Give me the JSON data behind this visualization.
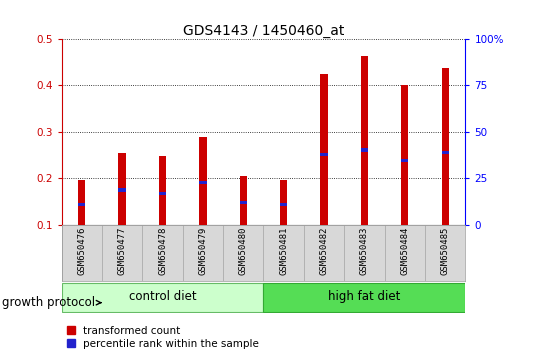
{
  "title": "GDS4143 / 1450460_at",
  "samples": [
    "GSM650476",
    "GSM650477",
    "GSM650478",
    "GSM650479",
    "GSM650480",
    "GSM650481",
    "GSM650482",
    "GSM650483",
    "GSM650484",
    "GSM650485"
  ],
  "red_values": [
    0.197,
    0.255,
    0.248,
    0.288,
    0.205,
    0.196,
    0.424,
    0.463,
    0.4,
    0.438
  ],
  "blue_values": [
    0.143,
    0.175,
    0.168,
    0.191,
    0.148,
    0.144,
    0.252,
    0.261,
    0.238,
    0.256
  ],
  "ymin": 0.1,
  "ymax": 0.5,
  "yticks": [
    0.1,
    0.2,
    0.3,
    0.4,
    0.5
  ],
  "right_yticks": [
    0,
    25,
    50,
    75,
    100
  ],
  "right_yticklabels": [
    "0",
    "25",
    "50",
    "75",
    "100%"
  ],
  "bar_width": 0.18,
  "red_color": "#cc0000",
  "blue_color": "#2222cc",
  "group1_label": "control diet",
  "group2_label": "high fat diet",
  "group1_color": "#ccffcc",
  "group2_color": "#55dd55",
  "group_label": "growth protocol",
  "legend1": "transformed count",
  "legend2": "percentile rank within the sample",
  "title_fontsize": 10,
  "tick_fontsize": 7.5,
  "sample_fontsize": 6.5,
  "group_label_fontsize": 8.5,
  "legend_fontsize": 7.5,
  "bg_color": "#d8d8d8"
}
